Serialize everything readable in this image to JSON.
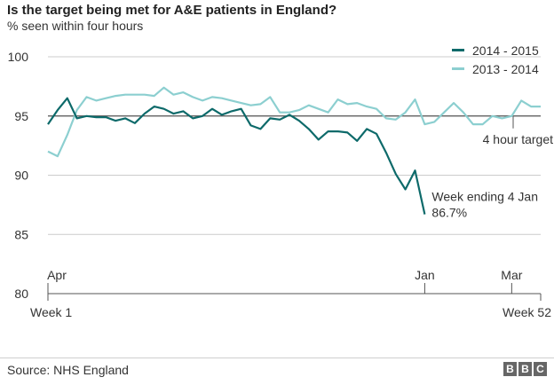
{
  "header": {
    "title": "Is the target being met for A&E patients in England?",
    "subtitle": "% seen within four hours"
  },
  "footer": {
    "source": "Source: NHS England",
    "logo_letters": [
      "B",
      "B",
      "C"
    ]
  },
  "colors": {
    "series_2014_2015": "#0d6a6a",
    "series_2013_2014": "#8ccfd0",
    "target_line": "#555555",
    "axis": "#555555",
    "grid": "#cccccc"
  },
  "chart_data": {
    "type": "line",
    "title": "Is the target being met for A&E patients in England?",
    "ylabel": "% seen within four hours",
    "ylim": [
      80,
      100
    ],
    "yticks": [
      80,
      85,
      90,
      95,
      100
    ],
    "xlim": [
      1,
      52
    ],
    "x_labels": [
      {
        "week": 1,
        "text": "Week 1",
        "pos": "below"
      },
      {
        "week": 52,
        "text": "Week 52",
        "pos": "below"
      },
      {
        "week": 1,
        "text": "Apr",
        "pos": "inside"
      },
      {
        "week": 40,
        "text": "Jan",
        "pos": "inside"
      },
      {
        "week": 49,
        "text": "Mar",
        "pos": "inside"
      }
    ],
    "grid": "horizontal",
    "legend_position": "top-right",
    "target": {
      "value": 95,
      "label": "4 hour target"
    },
    "annotation": {
      "text_line1": "Week ending 4 Jan",
      "text_line2": "86.7%",
      "week": 40,
      "value": 86.7
    },
    "series": [
      {
        "name": "2014 - 2015",
        "weeks": [
          1,
          2,
          3,
          4,
          5,
          6,
          7,
          8,
          9,
          10,
          11,
          12,
          13,
          14,
          15,
          16,
          17,
          18,
          19,
          20,
          21,
          22,
          23,
          24,
          25,
          26,
          27,
          28,
          29,
          30,
          31,
          32,
          33,
          34,
          35,
          36,
          37,
          38,
          39,
          40
        ],
        "values": [
          94.3,
          95.5,
          96.5,
          94.8,
          95.0,
          94.9,
          94.9,
          94.6,
          94.8,
          94.4,
          95.2,
          95.8,
          95.6,
          95.2,
          95.4,
          94.8,
          95.0,
          95.6,
          95.1,
          95.4,
          95.6,
          94.2,
          93.9,
          94.8,
          94.7,
          95.1,
          94.6,
          93.9,
          93.0,
          93.7,
          93.7,
          93.6,
          92.9,
          93.9,
          93.5,
          91.9,
          90.1,
          88.8,
          90.4,
          86.7
        ]
      },
      {
        "name": "2013 - 2014",
        "weeks": [
          1,
          2,
          3,
          4,
          5,
          6,
          7,
          8,
          9,
          10,
          11,
          12,
          13,
          14,
          15,
          16,
          17,
          18,
          19,
          20,
          21,
          22,
          23,
          24,
          25,
          26,
          27,
          28,
          29,
          30,
          31,
          32,
          33,
          34,
          35,
          36,
          37,
          38,
          39,
          40,
          41,
          42,
          43,
          44,
          45,
          46,
          47,
          48,
          49,
          50,
          51,
          52
        ],
        "values": [
          92.0,
          91.6,
          93.4,
          95.5,
          96.6,
          96.3,
          96.5,
          96.7,
          96.8,
          96.8,
          96.8,
          96.7,
          97.4,
          96.8,
          97.0,
          96.6,
          96.3,
          96.6,
          96.5,
          96.3,
          96.1,
          95.9,
          96.0,
          96.6,
          95.3,
          95.3,
          95.5,
          95.9,
          95.6,
          95.3,
          96.4,
          96.0,
          96.1,
          95.8,
          95.6,
          94.8,
          94.7,
          95.3,
          96.4,
          94.3,
          94.5,
          95.3,
          96.1,
          95.3,
          94.3,
          94.3,
          95.0,
          94.8,
          95.0,
          96.3,
          95.8,
          95.8
        ]
      }
    ]
  }
}
